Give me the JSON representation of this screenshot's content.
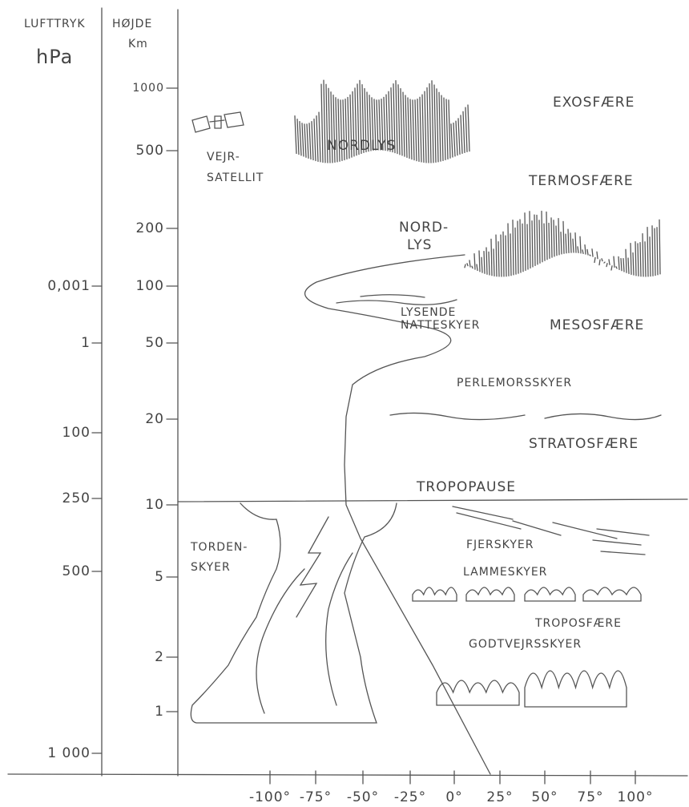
{
  "axes": {
    "pressure": {
      "title": "LUFTTRYK",
      "unit": "hPa",
      "ticks": [
        "0,001",
        "1",
        "100",
        "250",
        "500",
        "1 000"
      ]
    },
    "height": {
      "title": "HØJDE",
      "unit": "Km",
      "ticks": [
        "1000",
        "500",
        "200",
        "100",
        "50",
        "20",
        "10",
        "5",
        "2",
        "1"
      ]
    },
    "temperature": {
      "ticks": [
        "-100°",
        "-75°",
        "-50°",
        "-25°",
        "0°",
        "25°",
        "50°",
        "75°",
        "100°"
      ]
    }
  },
  "labels": {
    "exosphere": "EXOSFÆRE",
    "aurora_high": "NORDLYS",
    "satellite": [
      "VEJR-",
      "SATELLIT"
    ],
    "thermosphere": "TERMOSFÆRE",
    "aurora_low": [
      "NORD-",
      "LYS"
    ],
    "noctilucent": [
      "LYSENDE",
      "NATTESKYER"
    ],
    "mesosphere": "MESOSFÆRE",
    "nacreous": "PERLEMORSSKYER",
    "stratosphere": "STRATOSFÆRE",
    "tropopause": "TROPOPAUSE",
    "cirrus": "FJERSKYER",
    "altocumulus": "LAMMESKYER",
    "troposphere": "TROPOSFÆRE",
    "cumulus": "GODTVEJRSSKYER",
    "thunderclouds": [
      "TORDEN-",
      "SKYER"
    ]
  }
}
